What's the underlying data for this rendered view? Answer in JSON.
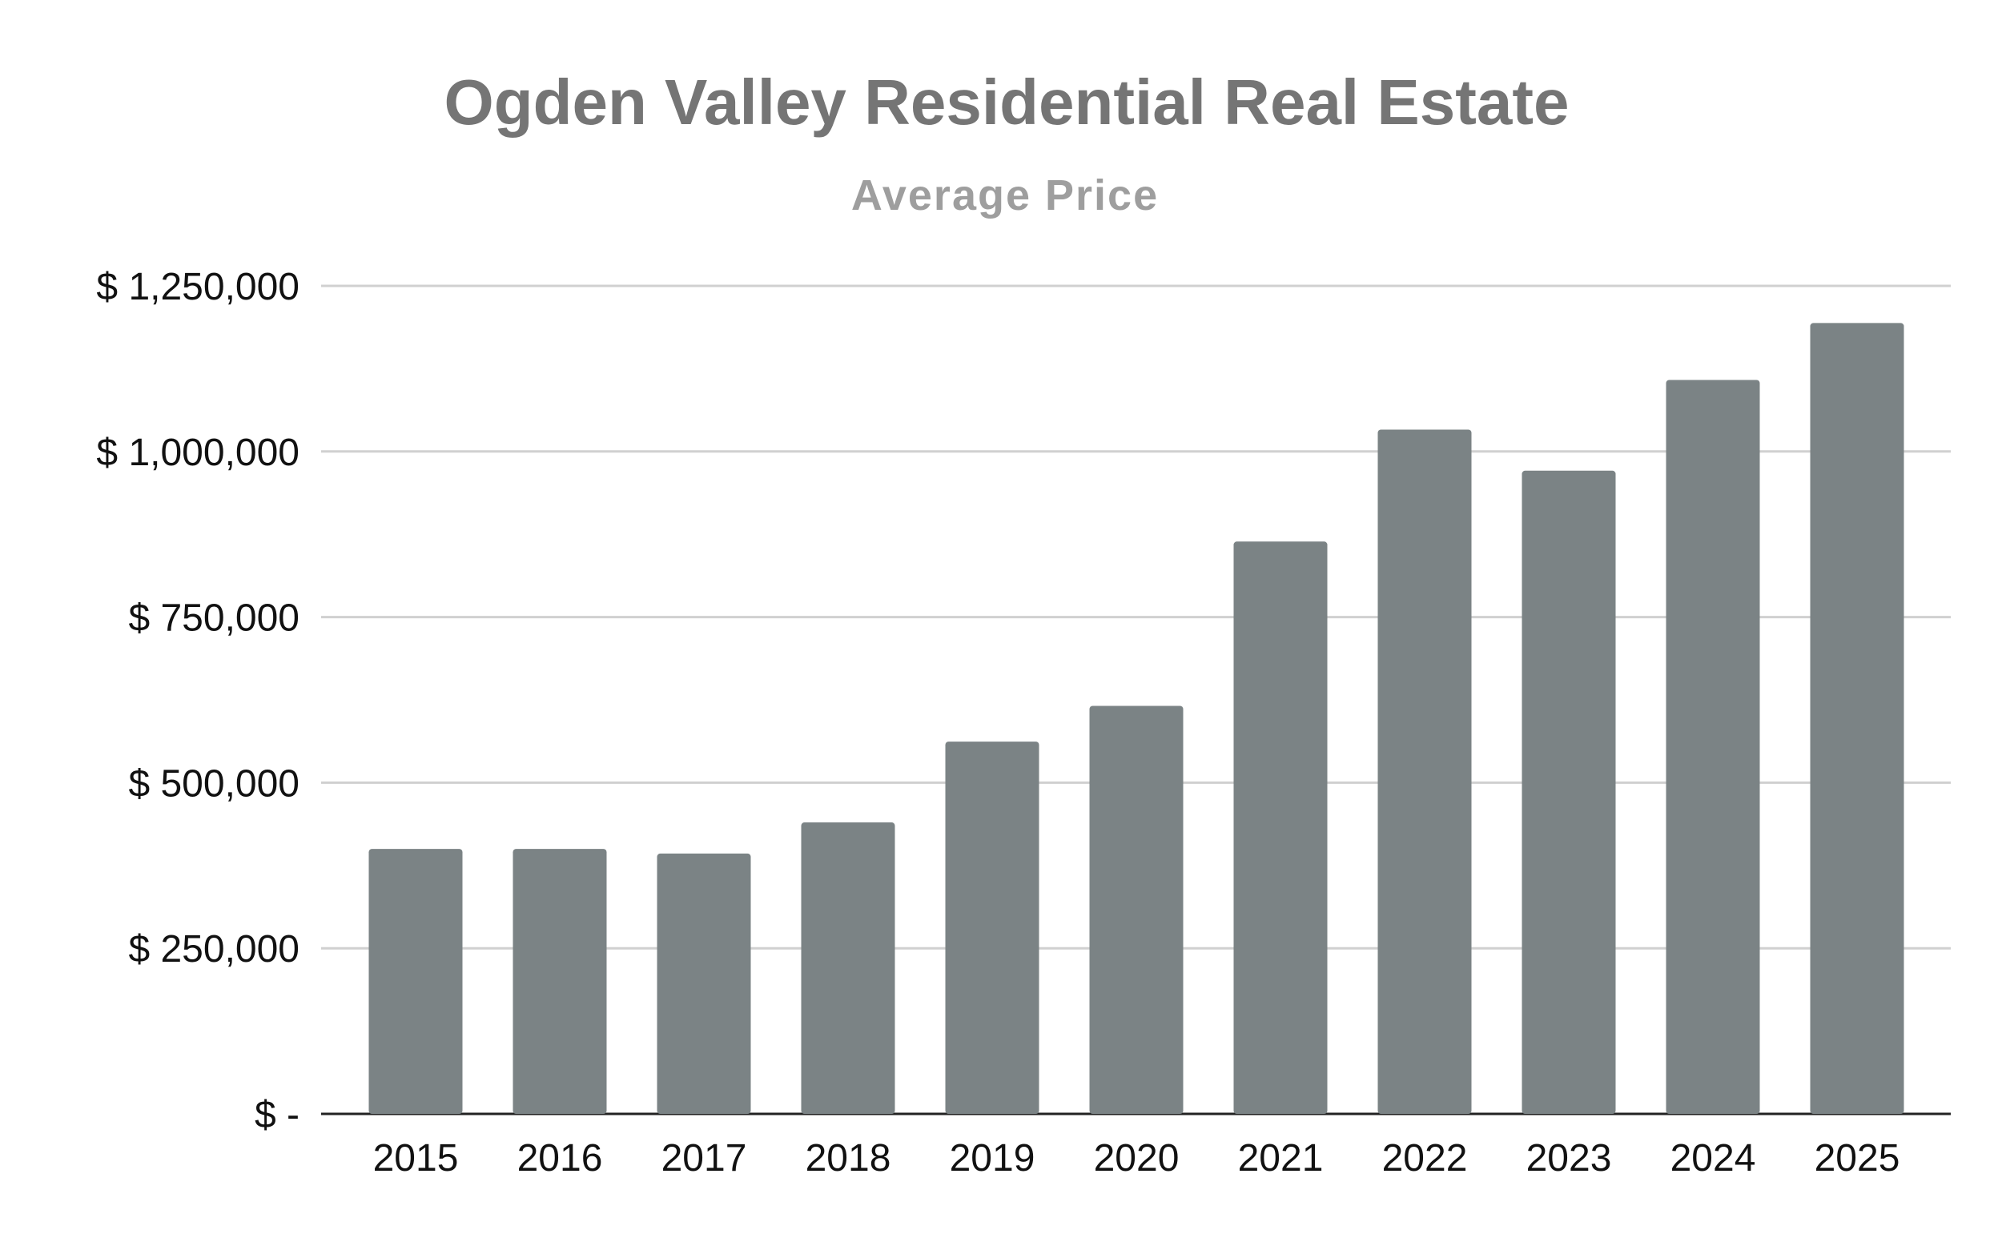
{
  "chart_data": {
    "type": "bar",
    "title": "Ogden Valley Residential Real Estate",
    "subtitle": "Average Price",
    "xlabel": "",
    "ylabel": "",
    "categories": [
      "2015",
      "2016",
      "2017",
      "2018",
      "2019",
      "2020",
      "2021",
      "2022",
      "2023",
      "2024",
      "2025"
    ],
    "values": [
      400000,
      400000,
      393000,
      440000,
      562000,
      616000,
      864000,
      1033000,
      971000,
      1108000,
      1194000
    ],
    "ylim": [
      0,
      1250000
    ],
    "yticks": [
      0,
      250000,
      500000,
      750000,
      1000000,
      1250000
    ],
    "ytick_labels": [
      "$ -",
      "$ 250,000",
      "$ 500,000",
      "$ 750,000",
      "$ 1,000,000",
      "$ 1,250,000"
    ],
    "grid": true,
    "legend": "none",
    "colors": {
      "bar": "#7b8385",
      "grid": "#d0d0d0",
      "axis": "#222222"
    }
  }
}
